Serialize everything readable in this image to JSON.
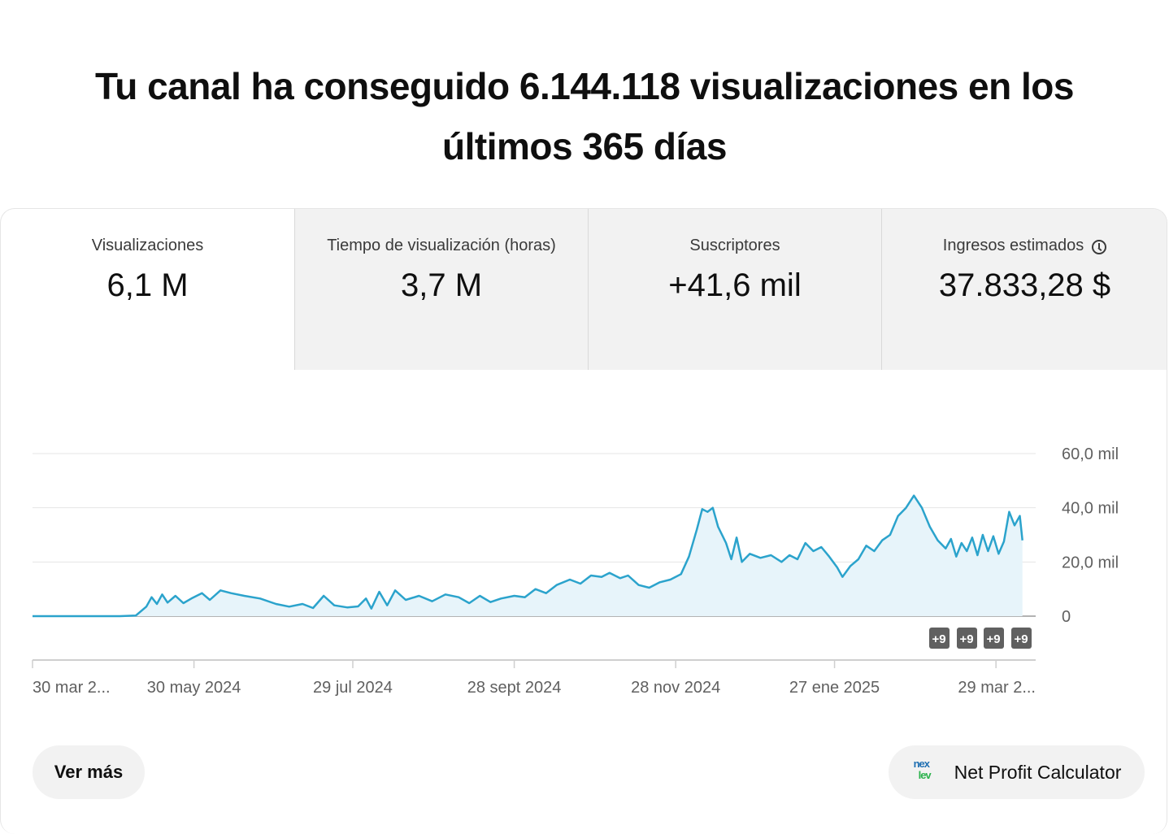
{
  "headline": {
    "line1": "Tu canal ha conseguido 6.144.118 visualizaciones en los",
    "line2": "últimos 365 días"
  },
  "tabs": [
    {
      "label": "Visualizaciones",
      "value": "6,1 M",
      "active": true
    },
    {
      "label": "Tiempo de visualización (horas)",
      "value": "3,7 M",
      "active": false
    },
    {
      "label": "Suscriptores",
      "value": "+41,6 mil",
      "active": false
    },
    {
      "label": "Ingresos estimados",
      "value": "37.833,28 $",
      "active": false,
      "icon": "clock-icon"
    }
  ],
  "chart_data": {
    "type": "area",
    "x_start": "2024-03-30",
    "x_end": "2025-04-13",
    "ylim": [
      0,
      60000
    ],
    "yticks": [
      {
        "value": 60000,
        "label": "60,0 mil"
      },
      {
        "value": 40000,
        "label": "40,0 mil"
      },
      {
        "value": 20000,
        "label": "20,0 mil"
      },
      {
        "value": 0,
        "label": "0"
      }
    ],
    "xticks": [
      {
        "date": "2024-03-30",
        "label": "30 mar 2..."
      },
      {
        "date": "2024-05-30",
        "label": "30 may 2024"
      },
      {
        "date": "2024-07-29",
        "label": "29 jul 2024"
      },
      {
        "date": "2024-09-28",
        "label": "28 sept 2024"
      },
      {
        "date": "2024-11-28",
        "label": "28 nov 2024"
      },
      {
        "date": "2025-01-27",
        "label": "27 ene 2025"
      },
      {
        "date": "2025-03-29",
        "label": "29 mar 2..."
      }
    ],
    "points": [
      [
        "2024-03-30",
        0
      ],
      [
        "2024-04-12",
        0
      ],
      [
        "2024-05-02",
        0
      ],
      [
        "2024-05-08",
        200
      ],
      [
        "2024-05-12",
        3500
      ],
      [
        "2024-05-14",
        7000
      ],
      [
        "2024-05-16",
        4500
      ],
      [
        "2024-05-18",
        8000
      ],
      [
        "2024-05-20",
        5000
      ],
      [
        "2024-05-23",
        7500
      ],
      [
        "2024-05-26",
        4800
      ],
      [
        "2024-05-29",
        6500
      ],
      [
        "2024-06-02",
        8500
      ],
      [
        "2024-06-05",
        6000
      ],
      [
        "2024-06-09",
        9500
      ],
      [
        "2024-06-13",
        8500
      ],
      [
        "2024-06-18",
        7500
      ],
      [
        "2024-06-24",
        6500
      ],
      [
        "2024-06-30",
        4500
      ],
      [
        "2024-07-05",
        3500
      ],
      [
        "2024-07-10",
        4500
      ],
      [
        "2024-07-14",
        3000
      ],
      [
        "2024-07-18",
        7500
      ],
      [
        "2024-07-22",
        4000
      ],
      [
        "2024-07-27",
        3200
      ],
      [
        "2024-07-31",
        3600
      ],
      [
        "2024-08-03",
        6500
      ],
      [
        "2024-08-05",
        2800
      ],
      [
        "2024-08-08",
        9000
      ],
      [
        "2024-08-11",
        4000
      ],
      [
        "2024-08-14",
        9500
      ],
      [
        "2024-08-18",
        6000
      ],
      [
        "2024-08-23",
        7500
      ],
      [
        "2024-08-28",
        5500
      ],
      [
        "2024-09-02",
        8000
      ],
      [
        "2024-09-07",
        7000
      ],
      [
        "2024-09-11",
        4800
      ],
      [
        "2024-09-15",
        7500
      ],
      [
        "2024-09-19",
        5200
      ],
      [
        "2024-09-23",
        6500
      ],
      [
        "2024-09-28",
        7500
      ],
      [
        "2024-10-02",
        7000
      ],
      [
        "2024-10-06",
        10000
      ],
      [
        "2024-10-10",
        8500
      ],
      [
        "2024-10-14",
        11500
      ],
      [
        "2024-10-19",
        13500
      ],
      [
        "2024-10-23",
        12000
      ],
      [
        "2024-10-27",
        15000
      ],
      [
        "2024-10-31",
        14500
      ],
      [
        "2024-11-03",
        16000
      ],
      [
        "2024-11-07",
        14000
      ],
      [
        "2024-11-10",
        15000
      ],
      [
        "2024-11-14",
        11500
      ],
      [
        "2024-11-18",
        10500
      ],
      [
        "2024-11-22",
        12500
      ],
      [
        "2024-11-26",
        13500
      ],
      [
        "2024-11-30",
        15500
      ],
      [
        "2024-12-03",
        22000
      ],
      [
        "2024-12-06",
        32000
      ],
      [
        "2024-12-08",
        39500
      ],
      [
        "2024-12-10",
        38500
      ],
      [
        "2024-12-12",
        40000
      ],
      [
        "2024-12-14",
        33000
      ],
      [
        "2024-12-17",
        27000
      ],
      [
        "2024-12-19",
        21000
      ],
      [
        "2024-12-21",
        29000
      ],
      [
        "2024-12-23",
        20000
      ],
      [
        "2024-12-26",
        23000
      ],
      [
        "2024-12-30",
        21500
      ],
      [
        "2025-01-03",
        22500
      ],
      [
        "2025-01-07",
        20000
      ],
      [
        "2025-01-10",
        22500
      ],
      [
        "2025-01-13",
        21000
      ],
      [
        "2025-01-16",
        27000
      ],
      [
        "2025-01-19",
        24000
      ],
      [
        "2025-01-22",
        25500
      ],
      [
        "2025-01-25",
        22000
      ],
      [
        "2025-01-28",
        18000
      ],
      [
        "2025-01-30",
        14500
      ],
      [
        "2025-02-02",
        18500
      ],
      [
        "2025-02-05",
        21000
      ],
      [
        "2025-02-08",
        26000
      ],
      [
        "2025-02-11",
        24000
      ],
      [
        "2025-02-14",
        28000
      ],
      [
        "2025-02-17",
        30000
      ],
      [
        "2025-02-20",
        37000
      ],
      [
        "2025-02-23",
        40000
      ],
      [
        "2025-02-26",
        44500
      ],
      [
        "2025-03-01",
        40000
      ],
      [
        "2025-03-04",
        33000
      ],
      [
        "2025-03-07",
        28000
      ],
      [
        "2025-03-10",
        25000
      ],
      [
        "2025-03-12",
        28500
      ],
      [
        "2025-03-14",
        22000
      ],
      [
        "2025-03-16",
        27000
      ],
      [
        "2025-03-18",
        24000
      ],
      [
        "2025-03-20",
        29000
      ],
      [
        "2025-03-22",
        22500
      ],
      [
        "2025-03-24",
        30000
      ],
      [
        "2025-03-26",
        24000
      ],
      [
        "2025-03-28",
        29500
      ],
      [
        "2025-03-30",
        23000
      ],
      [
        "2025-04-01",
        27500
      ],
      [
        "2025-04-03",
        38500
      ],
      [
        "2025-04-05",
        33500
      ],
      [
        "2025-04-07",
        37000
      ],
      [
        "2025-04-08",
        28000
      ]
    ]
  },
  "markers": [
    "+9",
    "+9",
    "+9",
    "+9"
  ],
  "colors": {
    "line": "#2ba3cc",
    "area": "#e7f4fa",
    "grid": "#e5e5e5",
    "axis": "#606060"
  },
  "buttons": {
    "more": "Ver más",
    "calculator": "Net Profit Calculator",
    "calculator_icon": "nexlev-logo-icon"
  }
}
